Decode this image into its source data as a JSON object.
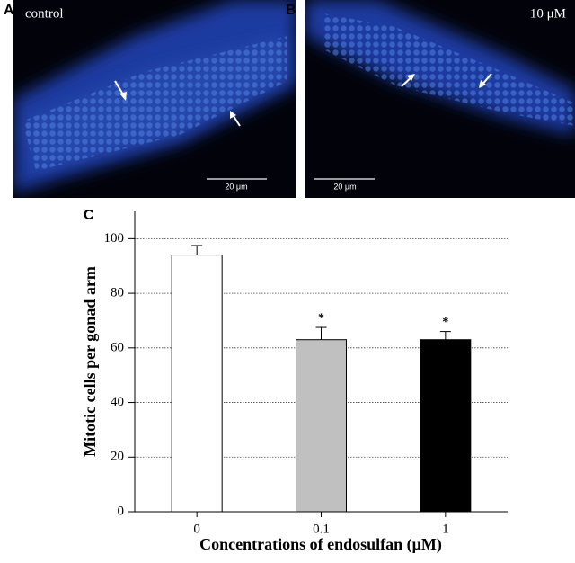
{
  "panels": [
    {
      "label": "A",
      "caption": "control",
      "scale_bar": "20 μm"
    },
    {
      "label": "B",
      "caption": "10 μM",
      "scale_bar": "20 μm"
    }
  ],
  "chart_data": {
    "type": "bar",
    "panel_label": "C",
    "xlabel": "Concentrations of endosulfan (μM)",
    "ylabel": "Mitotic cells per gonad arm",
    "categories": [
      "0",
      "0.1",
      "1"
    ],
    "values": [
      94,
      63,
      63
    ],
    "errors": [
      3.5,
      4.5,
      3
    ],
    "colors": [
      "#ffffff",
      "#c0c0c0",
      "#000000"
    ],
    "significance": [
      null,
      "*",
      "*"
    ],
    "ylim": [
      0,
      110
    ],
    "yticks": [
      0,
      20,
      40,
      60,
      80,
      100
    ],
    "grid": true
  }
}
